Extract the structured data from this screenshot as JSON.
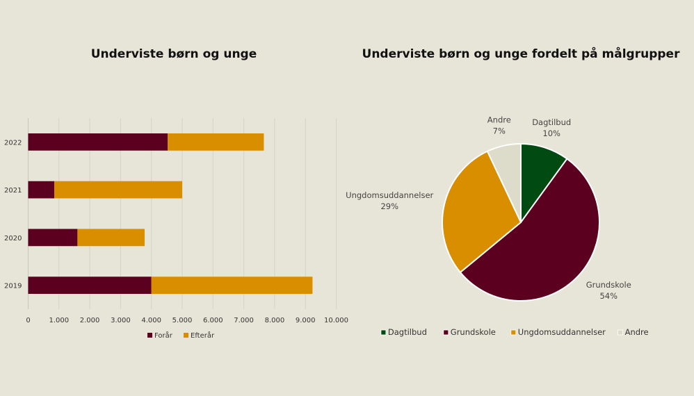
{
  "chart_data": [
    {
      "type": "bar",
      "orientation": "horizontal",
      "stacked": true,
      "title": "Underviste børn og unge",
      "categories": [
        "2022",
        "2021",
        "2020",
        "2019"
      ],
      "series": [
        {
          "name": "Forår",
          "values": [
            4530,
            850,
            1600,
            4000
          ],
          "color": "#5c0020"
        },
        {
          "name": "Efterår",
          "values": [
            3120,
            4150,
            2180,
            5230
          ],
          "color": "#d98e00"
        }
      ],
      "xlim": [
        0,
        10000
      ],
      "x_ticks": [
        "0",
        "1.000",
        "2.000",
        "3.000",
        "4.000",
        "5.000",
        "6.000",
        "7.000",
        "8.000",
        "9.000",
        "10.000"
      ],
      "grid": true,
      "legend_position": "bottom"
    },
    {
      "type": "pie",
      "title": "Underviste børn og unge fordelt på målgrupper",
      "slices": [
        {
          "name": "Dagtilbud",
          "value": 10,
          "label": "10%",
          "color": "#014a11"
        },
        {
          "name": "Grundskole",
          "value": 54,
          "label": "54%",
          "color": "#5c0020"
        },
        {
          "name": "Ungdomsuddannelser",
          "value": 29,
          "label": "29%",
          "color": "#d98e00"
        },
        {
          "name": "Andre",
          "value": 7,
          "label": "7%",
          "color": "#dddccb"
        }
      ],
      "legend_position": "bottom"
    }
  ]
}
